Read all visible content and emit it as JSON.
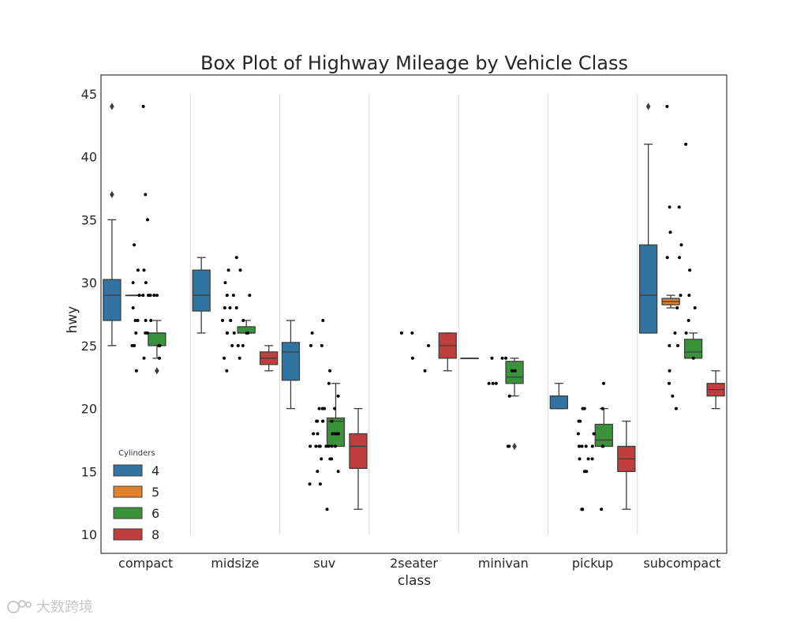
{
  "chart_data": {
    "type": "boxplot",
    "title": "Box Plot of Highway Mileage by Vehicle Class",
    "xlabel": "class",
    "ylabel": "hwy",
    "ylim": [
      8.5,
      46.5
    ],
    "yticks": [
      10,
      15,
      20,
      25,
      30,
      35,
      40,
      45
    ],
    "categories": [
      "compact",
      "midsize",
      "suv",
      "2seater",
      "minivan",
      "pickup",
      "subcompact"
    ],
    "legend": {
      "title": "Cylinders",
      "position": "lower-left",
      "entries": [
        {
          "label": "4",
          "color": "#3274a1"
        },
        {
          "label": "5",
          "color": "#e1812c"
        },
        {
          "label": "6",
          "color": "#3a923a"
        },
        {
          "label": "8",
          "color": "#c03d3e"
        }
      ]
    },
    "series": [
      {
        "name": "4",
        "color": "#3274a1",
        "boxes": [
          {
            "category": "compact",
            "q1": 27,
            "median": 29,
            "q3": 30.25,
            "whislo": 25,
            "whishi": 35,
            "fliers": [
              37,
              44
            ]
          },
          {
            "category": "midsize",
            "q1": 27.75,
            "median": 29,
            "q3": 31,
            "whislo": 26,
            "whishi": 32,
            "fliers": []
          },
          {
            "category": "suv",
            "q1": 22.25,
            "median": 24.5,
            "q3": 25.25,
            "whislo": 20,
            "whishi": 27,
            "fliers": []
          },
          {
            "category": "minivan",
            "q1": 24,
            "median": 24,
            "q3": 24,
            "whislo": 24,
            "whishi": 24,
            "fliers": []
          },
          {
            "category": "pickup",
            "q1": 20,
            "median": 20,
            "q3": 21,
            "whislo": 20,
            "whishi": 22,
            "fliers": []
          },
          {
            "category": "subcompact",
            "q1": 26,
            "median": 29,
            "q3": 33,
            "whislo": 26,
            "whishi": 41,
            "fliers": [
              44
            ]
          }
        ]
      },
      {
        "name": "5",
        "color": "#e1812c",
        "boxes": [
          {
            "category": "compact",
            "q1": 29,
            "median": 29,
            "q3": 29,
            "whislo": 29,
            "whishi": 29,
            "fliers": []
          },
          {
            "category": "subcompact",
            "q1": 28.25,
            "median": 28.5,
            "q3": 28.75,
            "whislo": 28,
            "whishi": 29,
            "fliers": []
          }
        ]
      },
      {
        "name": "6",
        "color": "#3a923a",
        "boxes": [
          {
            "category": "compact",
            "q1": 25,
            "median": 26,
            "q3": 26,
            "whislo": 24,
            "whishi": 27,
            "fliers": [
              23
            ]
          },
          {
            "category": "midsize",
            "q1": 26,
            "median": 26,
            "q3": 26.5,
            "whislo": 26,
            "whishi": 27,
            "fliers": []
          },
          {
            "category": "suv",
            "q1": 17,
            "median": 19,
            "q3": 19.25,
            "whislo": 17,
            "whishi": 22,
            "fliers": []
          },
          {
            "category": "minivan",
            "q1": 22,
            "median": 22.5,
            "q3": 23.75,
            "whislo": 21,
            "whishi": 24,
            "fliers": [
              17
            ]
          },
          {
            "category": "pickup",
            "q1": 17,
            "median": 17.5,
            "q3": 18.75,
            "whislo": 17,
            "whishi": 20,
            "fliers": []
          },
          {
            "category": "subcompact",
            "q1": 24,
            "median": 24.5,
            "q3": 25.5,
            "whislo": 24,
            "whishi": 26,
            "fliers": []
          }
        ]
      },
      {
        "name": "8",
        "color": "#c03d3e",
        "boxes": [
          {
            "category": "midsize",
            "q1": 23.5,
            "median": 24,
            "q3": 24.5,
            "whislo": 23,
            "whishi": 25,
            "fliers": []
          },
          {
            "category": "suv",
            "q1": 15.25,
            "median": 17,
            "q3": 18,
            "whislo": 12,
            "whishi": 20,
            "fliers": []
          },
          {
            "category": "2seater",
            "q1": 24,
            "median": 25,
            "q3": 26,
            "whislo": 23,
            "whishi": 26,
            "fliers": []
          },
          {
            "category": "pickup",
            "q1": 15,
            "median": 16,
            "q3": 17,
            "whislo": 12,
            "whishi": 19,
            "fliers": []
          },
          {
            "category": "subcompact",
            "q1": 21,
            "median": 21.5,
            "q3": 22,
            "whislo": 20,
            "whishi": 23,
            "fliers": []
          }
        ]
      }
    ],
    "points": [
      {
        "category": "compact",
        "values": [
          37,
          35,
          33,
          31,
          31,
          30,
          30,
          29,
          29,
          29,
          29,
          29,
          29,
          28,
          27,
          27,
          27,
          27,
          26,
          26,
          26,
          25,
          25,
          25,
          25,
          24,
          24,
          23,
          44
        ]
      },
      {
        "category": "midsize",
        "values": [
          32,
          31,
          31,
          30,
          29,
          29,
          29,
          28,
          28,
          28,
          27,
          27,
          27,
          27,
          26,
          26,
          26,
          26,
          26,
          25,
          25,
          25,
          24,
          24,
          23
        ]
      },
      {
        "category": "suv",
        "values": [
          27,
          26,
          25,
          25,
          23,
          22,
          21,
          20,
          20,
          20,
          20,
          20,
          19,
          19,
          19,
          19,
          19,
          18,
          18,
          18,
          18,
          18,
          18,
          17,
          17,
          17,
          17,
          17,
          17,
          17,
          17,
          16,
          16,
          16,
          15,
          15,
          14,
          14,
          12
        ]
      },
      {
        "category": "2seater",
        "values": [
          26,
          26,
          25,
          24,
          23
        ]
      },
      {
        "category": "minivan",
        "values": [
          24,
          24,
          24,
          23,
          23,
          22,
          22,
          22,
          21,
          17,
          17
        ]
      },
      {
        "category": "pickup",
        "values": [
          22,
          20,
          20,
          20,
          19,
          19,
          18,
          18,
          17,
          17,
          17,
          17,
          17,
          17,
          16,
          16,
          16,
          15,
          15,
          12,
          12,
          12
        ]
      },
      {
        "category": "subcompact",
        "values": [
          44,
          41,
          36,
          36,
          34,
          33,
          32,
          32,
          31,
          29,
          29,
          28,
          28,
          27,
          26,
          26,
          25,
          25,
          24,
          23,
          22,
          21,
          20
        ]
      }
    ]
  },
  "watermark": {
    "text": "大数跨境"
  }
}
